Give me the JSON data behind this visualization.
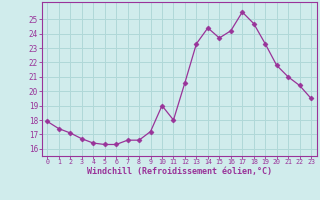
{
  "x": [
    0,
    1,
    2,
    3,
    4,
    5,
    6,
    7,
    8,
    9,
    10,
    11,
    12,
    13,
    14,
    15,
    16,
    17,
    18,
    19,
    20,
    21,
    22,
    23
  ],
  "y": [
    17.9,
    17.4,
    17.1,
    16.7,
    16.4,
    16.3,
    16.3,
    16.6,
    16.6,
    17.2,
    19.0,
    18.0,
    20.6,
    23.3,
    24.4,
    23.7,
    24.2,
    25.5,
    24.7,
    23.3,
    21.8,
    21.0,
    20.4,
    19.5
  ],
  "line_color": "#993399",
  "marker": "D",
  "marker_size": 2.5,
  "bg_color": "#d0ecec",
  "grid_color": "#b0d8d8",
  "xlabel": "Windchill (Refroidissement éolien,°C)",
  "xlabel_color": "#993399",
  "tick_color": "#993399",
  "spine_color": "#993399",
  "ylim": [
    15.5,
    26.2
  ],
  "xlim": [
    -0.5,
    23.5
  ],
  "yticks": [
    16,
    17,
    18,
    19,
    20,
    21,
    22,
    23,
    24,
    25
  ],
  "xticks": [
    0,
    1,
    2,
    3,
    4,
    5,
    6,
    7,
    8,
    9,
    10,
    11,
    12,
    13,
    14,
    15,
    16,
    17,
    18,
    19,
    20,
    21,
    22,
    23
  ]
}
